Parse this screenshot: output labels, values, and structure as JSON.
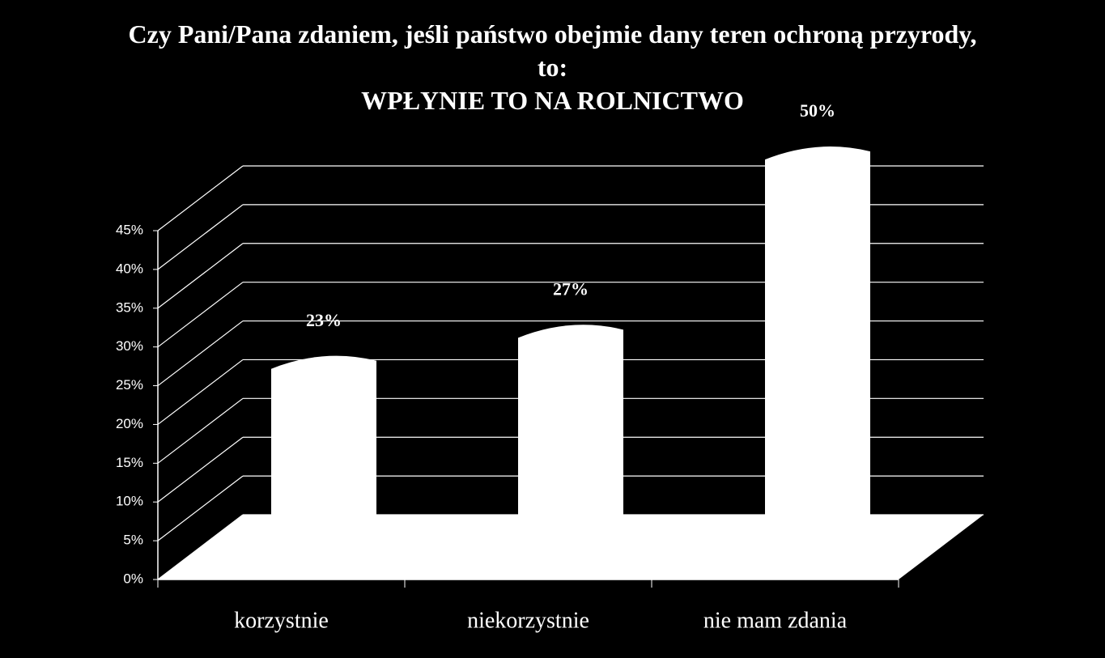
{
  "chart_data": {
    "type": "bar3d",
    "title": "Czy Pani/Pana zdaniem, jeśli państwo obejmie dany teren ochroną przyrody, to:",
    "subtitle": "WPŁYNIE TO NA ROLNICTWO",
    "categories": [
      "korzystnie",
      "niekorzystnie",
      "nie mam zdania"
    ],
    "values": [
      23,
      27,
      50
    ],
    "value_labels": [
      "23%",
      "27%",
      "50%"
    ],
    "color": "#ffffff",
    "ylim": [
      0,
      45
    ],
    "yticks": [
      {
        "value": 0,
        "label": "0%"
      },
      {
        "value": 5,
        "label": "5%"
      },
      {
        "value": 10,
        "label": "10%"
      },
      {
        "value": 15,
        "label": "15%"
      },
      {
        "value": 20,
        "label": "20%"
      },
      {
        "value": 25,
        "label": "25%"
      },
      {
        "value": 30,
        "label": "30%"
      },
      {
        "value": 35,
        "label": "35%"
      },
      {
        "value": 40,
        "label": "40%"
      },
      {
        "value": 45,
        "label": "45%"
      }
    ],
    "grid": true
  }
}
